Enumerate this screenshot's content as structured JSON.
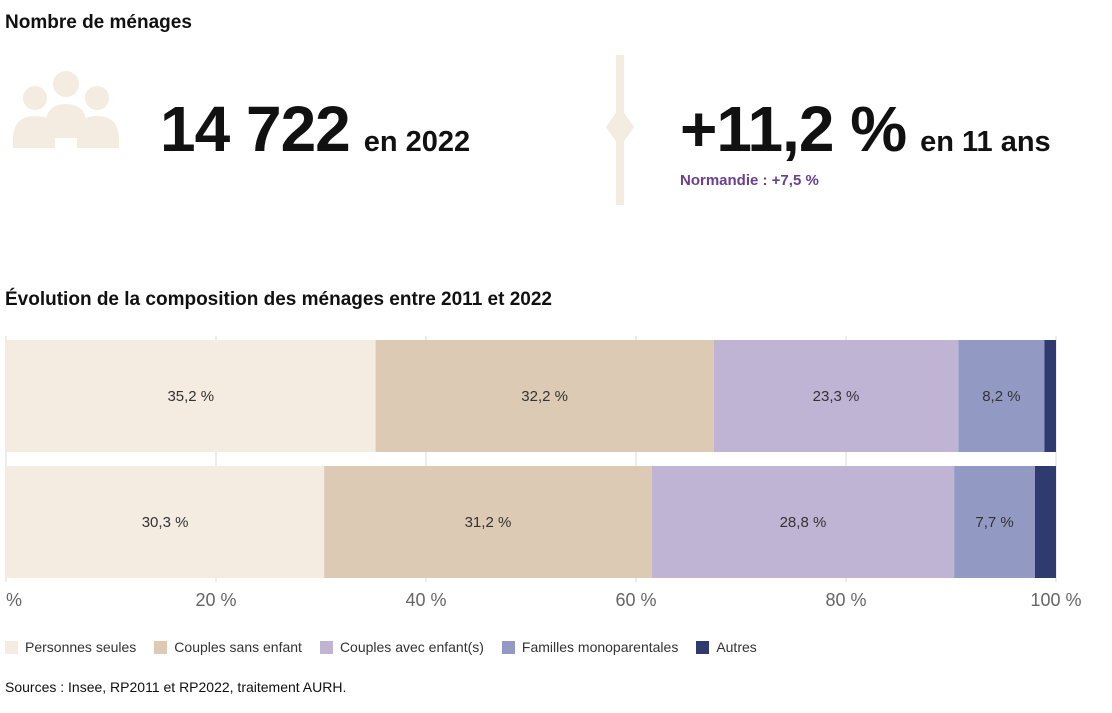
{
  "header": {
    "title": "Nombre de ménages"
  },
  "kpi": {
    "households_value": "14 722",
    "households_suffix": "en 2022",
    "growth_value": "+11,2 %",
    "growth_suffix": "en 11 ans",
    "region_compare": "Normandie : +7,5 %"
  },
  "icons": {
    "people": "people-group-icon",
    "divider": "vertical-divider-icon"
  },
  "colors": {
    "personnes_seules": "#f4ebe1",
    "couples_sans_enfant": "#dccab5",
    "couples_avec_enfants": "#bfb4d4",
    "familles_monoparentales": "#929ac4",
    "autres": "#2f3a6e",
    "accent": "#6b3f8e",
    "icon_fill": "#f4ebe1"
  },
  "chart_data": {
    "type": "bar",
    "orientation": "horizontal",
    "stacked": true,
    "title": "Évolution de la composition des ménages entre 2011 et 2022",
    "categories": [
      "",
      ""
    ],
    "series": [
      {
        "name": "Personnes seules",
        "values": [
          35.2,
          30.3
        ],
        "labels": [
          "35,2 %",
          "30,3 %"
        ]
      },
      {
        "name": "Couples sans enfant",
        "values": [
          32.2,
          31.2
        ],
        "labels": [
          "32,2 %",
          "31,2 %"
        ]
      },
      {
        "name": "Couples avec enfant(s)",
        "values": [
          23.3,
          28.8
        ],
        "labels": [
          "23,3 %",
          "28,8 %"
        ]
      },
      {
        "name": "Familles monoparentales",
        "values": [
          8.2,
          7.7
        ],
        "labels": [
          "8,2 %",
          "7,7 %"
        ]
      },
      {
        "name": "Autres",
        "values": [
          1.1,
          2.0
        ],
        "labels": [
          "",
          ""
        ]
      }
    ],
    "xlim": [
      0,
      100
    ],
    "xticks": [
      0,
      20,
      40,
      60,
      80,
      100
    ],
    "xtick_labels": [
      "%",
      "20 %",
      "40 %",
      "60 %",
      "80 %",
      "100 %"
    ],
    "grid": true,
    "legend_position": "bottom-left"
  },
  "source": "Sources : Insee, RP2011 et RP2022, traitement AURH."
}
